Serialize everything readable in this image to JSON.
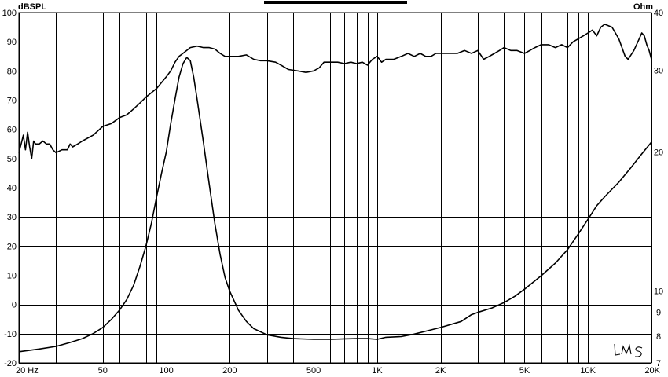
{
  "chart_data": {
    "type": "line",
    "title": "",
    "xlabel": "",
    "x_scale": "log",
    "xlim": [
      20,
      20000
    ],
    "x_tick_labels": [
      {
        "value": 20,
        "text": "20  Hz"
      },
      {
        "value": 50,
        "text": "50"
      },
      {
        "value": 100,
        "text": "100"
      },
      {
        "value": 200,
        "text": "200"
      },
      {
        "value": 500,
        "text": "500"
      },
      {
        "value": 1000,
        "text": "1K"
      },
      {
        "value": 2000,
        "text": "2K"
      },
      {
        "value": 5000,
        "text": "5K"
      },
      {
        "value": 10000,
        "text": "10K"
      },
      {
        "value": 20000,
        "text": "20K"
      }
    ],
    "y_left": {
      "label": "dBSPL",
      "ylim": [
        -20,
        100
      ],
      "ticks": [
        100,
        90,
        80,
        70,
        60,
        50,
        40,
        30,
        20,
        10,
        0,
        -10,
        -20
      ],
      "tick_text": [
        "100",
        "90",
        "80",
        "70",
        "60",
        "50",
        "40",
        "30",
        "20",
        "10",
        "0",
        "-10",
        "-20"
      ]
    },
    "y_right": {
      "label": "Ohm",
      "scale": "log",
      "ylim": [
        7,
        40
      ],
      "ticks": [
        40,
        30,
        20,
        10,
        9,
        8,
        7
      ],
      "tick_text": [
        "40",
        "30",
        "20",
        "10",
        "9",
        "8",
        "7"
      ]
    },
    "grid": true,
    "series": [
      {
        "axis": "left",
        "points": [
          [
            20,
            52
          ],
          [
            20.5,
            55
          ],
          [
            21,
            58
          ],
          [
            21.5,
            53
          ],
          [
            22,
            59
          ],
          [
            22.5,
            54
          ],
          [
            23,
            50
          ],
          [
            23.5,
            56
          ],
          [
            24,
            55
          ],
          [
            25,
            55
          ],
          [
            26,
            56
          ],
          [
            27,
            55
          ],
          [
            28,
            55
          ],
          [
            29,
            53
          ],
          [
            30,
            52
          ],
          [
            32,
            53
          ],
          [
            34,
            53
          ],
          [
            35,
            55
          ],
          [
            36,
            54
          ],
          [
            38,
            55
          ],
          [
            40,
            56
          ],
          [
            45,
            58
          ],
          [
            50,
            61
          ],
          [
            55,
            62
          ],
          [
            60,
            64
          ],
          [
            65,
            65
          ],
          [
            70,
            67
          ],
          [
            75,
            69
          ],
          [
            80,
            71
          ],
          [
            90,
            74
          ],
          [
            100,
            78
          ],
          [
            105,
            80
          ],
          [
            110,
            83
          ],
          [
            115,
            85
          ],
          [
            120,
            86
          ],
          [
            125,
            87
          ],
          [
            130,
            88
          ],
          [
            140,
            88.5
          ],
          [
            150,
            88
          ],
          [
            160,
            88
          ],
          [
            170,
            87.5
          ],
          [
            180,
            86
          ],
          [
            190,
            85
          ],
          [
            200,
            85
          ],
          [
            220,
            85
          ],
          [
            240,
            85.5
          ],
          [
            260,
            84
          ],
          [
            280,
            83.5
          ],
          [
            300,
            83.5
          ],
          [
            330,
            83
          ],
          [
            350,
            82
          ],
          [
            380,
            80.5
          ],
          [
            420,
            80
          ],
          [
            460,
            79.5
          ],
          [
            500,
            80
          ],
          [
            530,
            81
          ],
          [
            560,
            83
          ],
          [
            600,
            83
          ],
          [
            650,
            83
          ],
          [
            700,
            82.5
          ],
          [
            750,
            83
          ],
          [
            800,
            82.5
          ],
          [
            850,
            83
          ],
          [
            900,
            82
          ],
          [
            950,
            84
          ],
          [
            1000,
            85
          ],
          [
            1050,
            83
          ],
          [
            1100,
            84
          ],
          [
            1200,
            84
          ],
          [
            1300,
            85
          ],
          [
            1400,
            86
          ],
          [
            1500,
            85
          ],
          [
            1600,
            86
          ],
          [
            1700,
            85
          ],
          [
            1800,
            85
          ],
          [
            1900,
            86
          ],
          [
            2000,
            86
          ],
          [
            2200,
            86
          ],
          [
            2400,
            86
          ],
          [
            2600,
            87
          ],
          [
            2800,
            86
          ],
          [
            3000,
            87
          ],
          [
            3200,
            84
          ],
          [
            3400,
            85
          ],
          [
            3600,
            86
          ],
          [
            3800,
            87
          ],
          [
            4000,
            88
          ],
          [
            4300,
            87
          ],
          [
            4600,
            87
          ],
          [
            5000,
            86
          ],
          [
            5300,
            87
          ],
          [
            5600,
            88
          ],
          [
            6000,
            89
          ],
          [
            6500,
            89
          ],
          [
            7000,
            88
          ],
          [
            7500,
            89
          ],
          [
            8000,
            88
          ],
          [
            8500,
            90
          ],
          [
            9000,
            91
          ],
          [
            9500,
            92
          ],
          [
            10000,
            93
          ],
          [
            10500,
            94
          ],
          [
            11000,
            92
          ],
          [
            11500,
            95
          ],
          [
            12000,
            96
          ],
          [
            13000,
            95
          ],
          [
            14000,
            91
          ],
          [
            15000,
            85
          ],
          [
            15500,
            84
          ],
          [
            16500,
            87
          ],
          [
            17500,
            91
          ],
          [
            18000,
            93
          ],
          [
            18500,
            92
          ],
          [
            19000,
            89
          ],
          [
            19500,
            87
          ],
          [
            20000,
            84
          ]
        ]
      },
      {
        "axis": "right",
        "points": [
          [
            20,
            7.4
          ],
          [
            25,
            7.5
          ],
          [
            30,
            7.6
          ],
          [
            35,
            7.75
          ],
          [
            40,
            7.9
          ],
          [
            45,
            8.1
          ],
          [
            50,
            8.35
          ],
          [
            55,
            8.7
          ],
          [
            60,
            9.1
          ],
          [
            65,
            9.6
          ],
          [
            70,
            10.3
          ],
          [
            75,
            11.3
          ],
          [
            80,
            12.5
          ],
          [
            85,
            14
          ],
          [
            90,
            16
          ],
          [
            95,
            18
          ],
          [
            100,
            20
          ],
          [
            105,
            23
          ],
          [
            110,
            26
          ],
          [
            115,
            29
          ],
          [
            120,
            31
          ],
          [
            125,
            32
          ],
          [
            130,
            31.5
          ],
          [
            135,
            29
          ],
          [
            140,
            26
          ],
          [
            150,
            21
          ],
          [
            160,
            17
          ],
          [
            170,
            14
          ],
          [
            180,
            12
          ],
          [
            190,
            10.7
          ],
          [
            200,
            10
          ],
          [
            220,
            9.1
          ],
          [
            240,
            8.6
          ],
          [
            260,
            8.3
          ],
          [
            300,
            8.05
          ],
          [
            350,
            7.95
          ],
          [
            400,
            7.9
          ],
          [
            500,
            7.87
          ],
          [
            600,
            7.87
          ],
          [
            700,
            7.89
          ],
          [
            800,
            7.9
          ],
          [
            900,
            7.9
          ],
          [
            1000,
            7.87
          ],
          [
            1100,
            7.95
          ],
          [
            1300,
            7.98
          ],
          [
            1500,
            8.08
          ],
          [
            1800,
            8.25
          ],
          [
            2000,
            8.35
          ],
          [
            2500,
            8.6
          ],
          [
            2800,
            8.9
          ],
          [
            3000,
            9.0
          ],
          [
            3500,
            9.2
          ],
          [
            4000,
            9.45
          ],
          [
            4500,
            9.75
          ],
          [
            5000,
            10.1
          ],
          [
            6000,
            10.8
          ],
          [
            7000,
            11.5
          ],
          [
            8000,
            12.3
          ],
          [
            9000,
            13.3
          ],
          [
            10000,
            14.3
          ],
          [
            11000,
            15.3
          ],
          [
            12000,
            16
          ],
          [
            14000,
            17.2
          ],
          [
            16000,
            18.5
          ],
          [
            18000,
            19.8
          ],
          [
            20000,
            21
          ]
        ]
      }
    ],
    "annotation": "LMS"
  }
}
